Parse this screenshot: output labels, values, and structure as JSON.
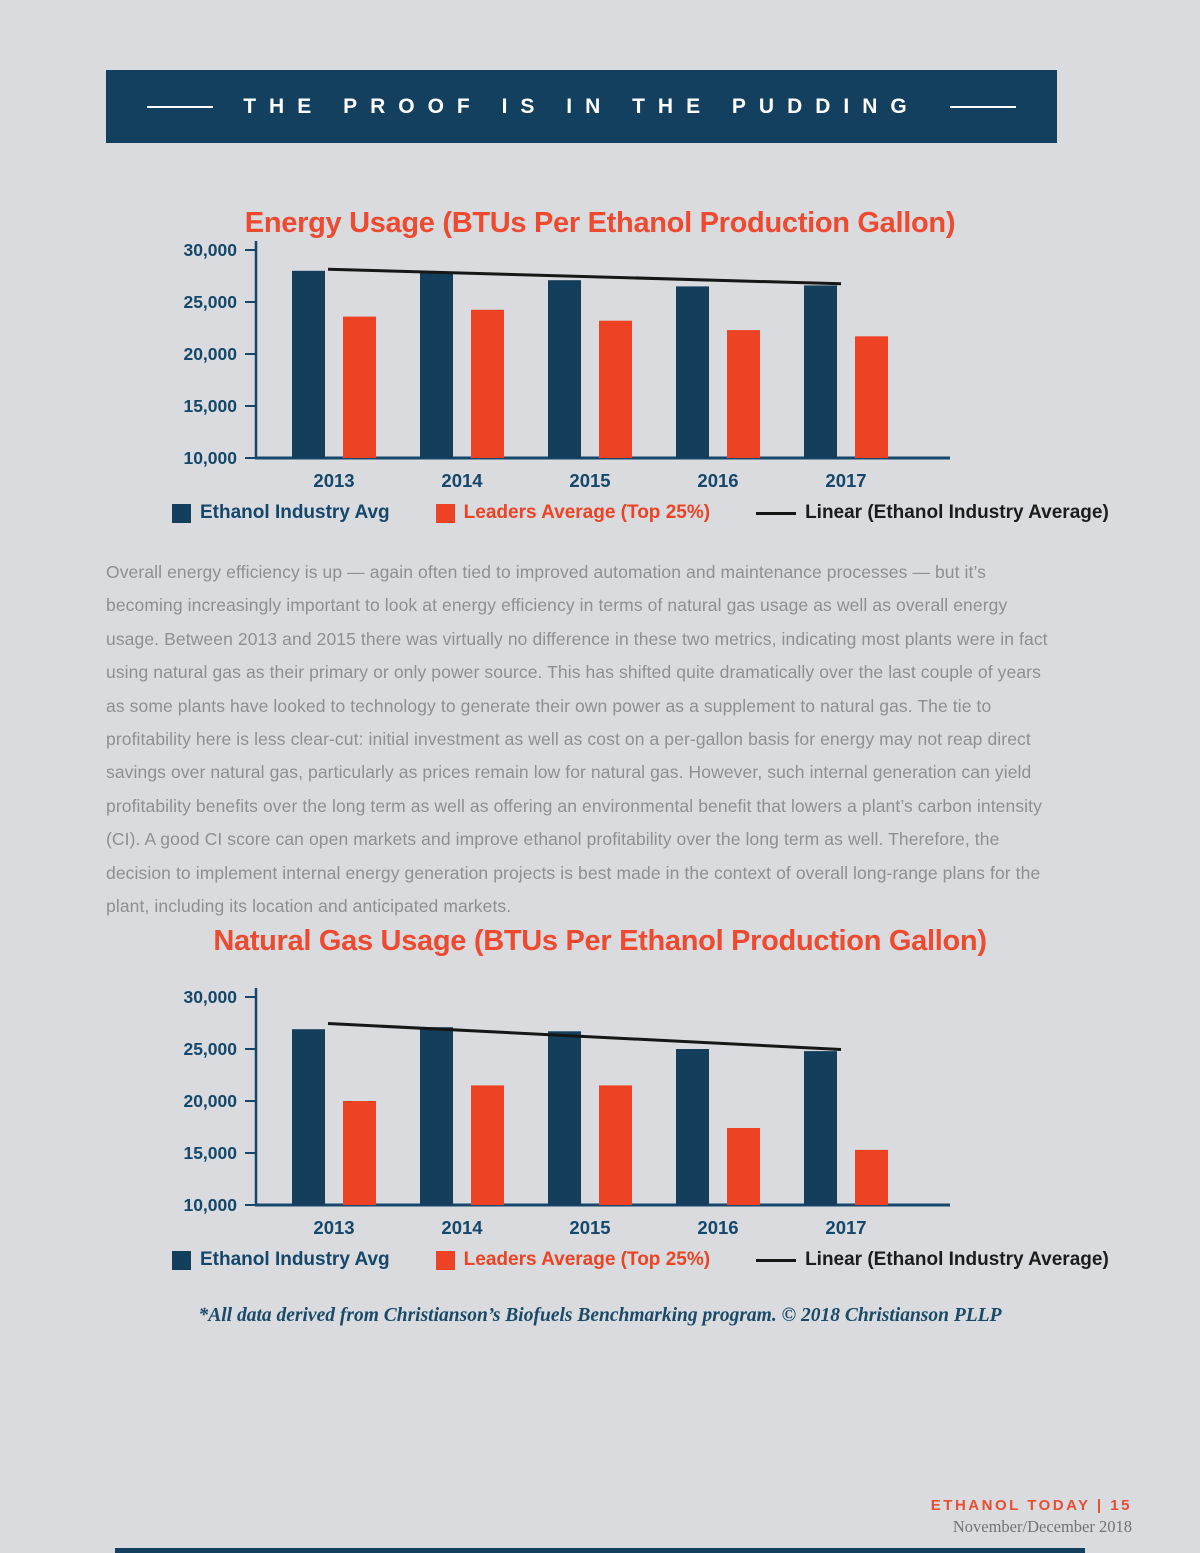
{
  "page": {
    "banner_title": "THE PROOF IS IN THE PUDDING",
    "footnote": "*All data derived from Christianson’s Biofuels Benchmarking program. © 2018 Christianson PLLP",
    "footer": {
      "magazine": "ETHANOL TODAY | 15",
      "date": "November/December 2018"
    }
  },
  "article": {
    "text": "Overall energy efficiency is up — again often tied to improved automation and maintenance processes — but it’s becoming increasingly important to look at energy efficiency in terms of natural gas usage as well as overall energy usage. Between 2013 and 2015 there was virtually no difference in these two metrics, indicating most plants were in fact using natural gas as their primary or only power source. This has shifted quite dramatically over the last couple of years as some plants have looked to technology to generate their own power as a supplement to natural gas. The tie to profitability here is less clear-cut: initial investment as well as cost on a per-gallon basis for energy may not reap direct savings over natural gas, particularly as prices remain low for natural gas. However, such internal generation can yield profitability benefits over the long term as well as offering an environmental benefit that lowers a plant’s carbon intensity (CI). A good CI score can open markets and improve ethanol profitability over the long term as well. Therefore, the decision to implement internal energy generation projects is best made in the context of overall long-range plans for the plant, including its location and anticipated markets."
  },
  "colors": {
    "background": "#d9dbde",
    "banner_navy": "#13405f",
    "bar_navy": "#133f5d",
    "bar_red": "#ee4224",
    "title_red": "#ef4a30",
    "axis_navy": "#15476b",
    "trend_black": "#161616",
    "body_gray": "#8d9093"
  },
  "chart_data": [
    {
      "type": "bar",
      "title": "Energy Usage (BTUs Per Ethanol Production Gallon)",
      "categories": [
        "2013",
        "2014",
        "2015",
        "2016",
        "2017"
      ],
      "series": [
        {
          "name": "Ethanol Industry Avg",
          "color": "#133f5d",
          "values": [
            28000,
            27900,
            27100,
            26500,
            26600
          ]
        },
        {
          "name": "Leaders Average (Top 25%)",
          "color": "#ee4224",
          "values": [
            23600,
            24250,
            23200,
            22300,
            21700
          ]
        }
      ],
      "trendline": {
        "name": "Linear (Ethanol Industry Average)",
        "start": 28150,
        "end": 26750
      },
      "xlabel": "",
      "ylabel": "",
      "ylim": [
        10000,
        30000
      ],
      "yticks": [
        10000,
        15000,
        20000,
        25000,
        30000
      ],
      "grid": false,
      "legend_position": "bottom"
    },
    {
      "type": "bar",
      "title": "Natural Gas Usage (BTUs Per Ethanol Production Gallon)",
      "categories": [
        "2013",
        "2014",
        "2015",
        "2016",
        "2017"
      ],
      "series": [
        {
          "name": "Ethanol Industry Avg",
          "color": "#133f5d",
          "values": [
            26900,
            27100,
            26700,
            25000,
            24800
          ]
        },
        {
          "name": "Leaders Average (Top 25%)",
          "color": "#ee4224",
          "values": [
            20000,
            21500,
            21500,
            17400,
            15300
          ]
        }
      ],
      "trendline": {
        "name": "Linear (Ethanol Industry Average)",
        "start": 27450,
        "end": 24950
      },
      "xlabel": "",
      "ylabel": "",
      "ylim": [
        10000,
        30000
      ],
      "yticks": [
        10000,
        15000,
        20000,
        25000,
        30000
      ],
      "grid": false,
      "legend_position": "bottom"
    }
  ]
}
